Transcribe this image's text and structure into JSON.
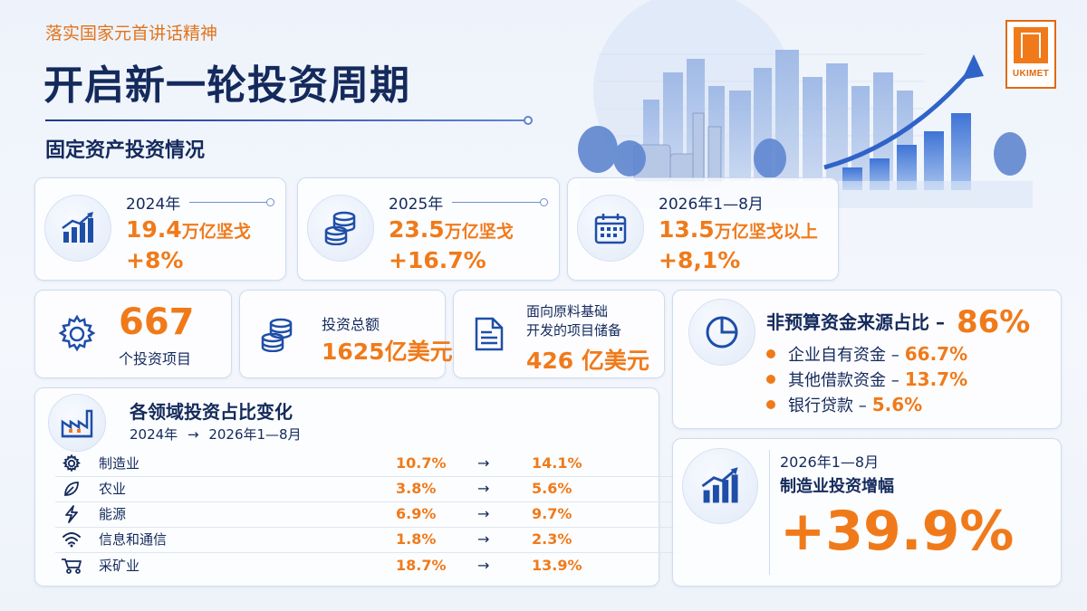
{
  "header": {
    "kicker": "落实国家元首讲话精神",
    "title": "开启新一轮投资周期",
    "subtitle": "固定资产投资情况"
  },
  "logo": {
    "text": "UKIMET"
  },
  "top_stats": [
    {
      "icon": "bar-growth-icon",
      "period": "2024年",
      "amount": "19.4",
      "unit": "万亿坚戈",
      "change": "+8%"
    },
    {
      "icon": "coins-icon",
      "period": "2025年",
      "amount": "23.5",
      "unit": "万亿坚戈",
      "change": "+16.7%"
    },
    {
      "icon": "calendar-icon",
      "period": "2026年1—8月",
      "amount": "13.5",
      "unit": "万亿坚戈以上",
      "change": "+8,1%"
    }
  ],
  "mid_stats": {
    "projects": {
      "value": "667",
      "label": "个投资项目"
    },
    "investment": {
      "label": "投资总额",
      "value": "1625亿美元"
    },
    "reserve": {
      "label_line1": "面向原料基础",
      "label_line2": "开发的项目储备",
      "value": "426 亿美元"
    }
  },
  "funding": {
    "title": "非预算资金来源占比 –",
    "title_pct": "86%",
    "items": [
      {
        "label": "企业自有资金 –",
        "pct": "66.7%"
      },
      {
        "label": "其他借款资金 –",
        "pct": "13.7%"
      },
      {
        "label": "银行贷款 –",
        "pct": "5.6%"
      }
    ]
  },
  "sectors": {
    "title": "各领域投资占比变化",
    "subtitle_from": "2024年",
    "subtitle_arrow": "→",
    "subtitle_to": "2026年1—8月",
    "rows": [
      {
        "icon": "gear-icon",
        "name": "制造业",
        "from": "10.7%",
        "arrow": "→",
        "to": "14.1%"
      },
      {
        "icon": "leaf-icon",
        "name": "农业",
        "from": "3.8%",
        "arrow": "→",
        "to": "5.6%"
      },
      {
        "icon": "lightning-icon",
        "name": "能源",
        "from": "6.9%",
        "arrow": "→",
        "to": "9.7%"
      },
      {
        "icon": "wifi-icon",
        "name": "信息和通信",
        "from": "1.8%",
        "arrow": "→",
        "to": "2.3%"
      },
      {
        "icon": "mining-cart-icon",
        "name": "采矿业",
        "from": "18.7%",
        "arrow": "→",
        "to": "13.9%"
      }
    ]
  },
  "manufacturing_growth": {
    "period": "2026年1—8月",
    "label": "制造业投资增幅",
    "value": "+39.9%"
  },
  "colors": {
    "accent": "#f07a1a",
    "navy": "#142a5c",
    "blue": "#1f4ea8"
  }
}
